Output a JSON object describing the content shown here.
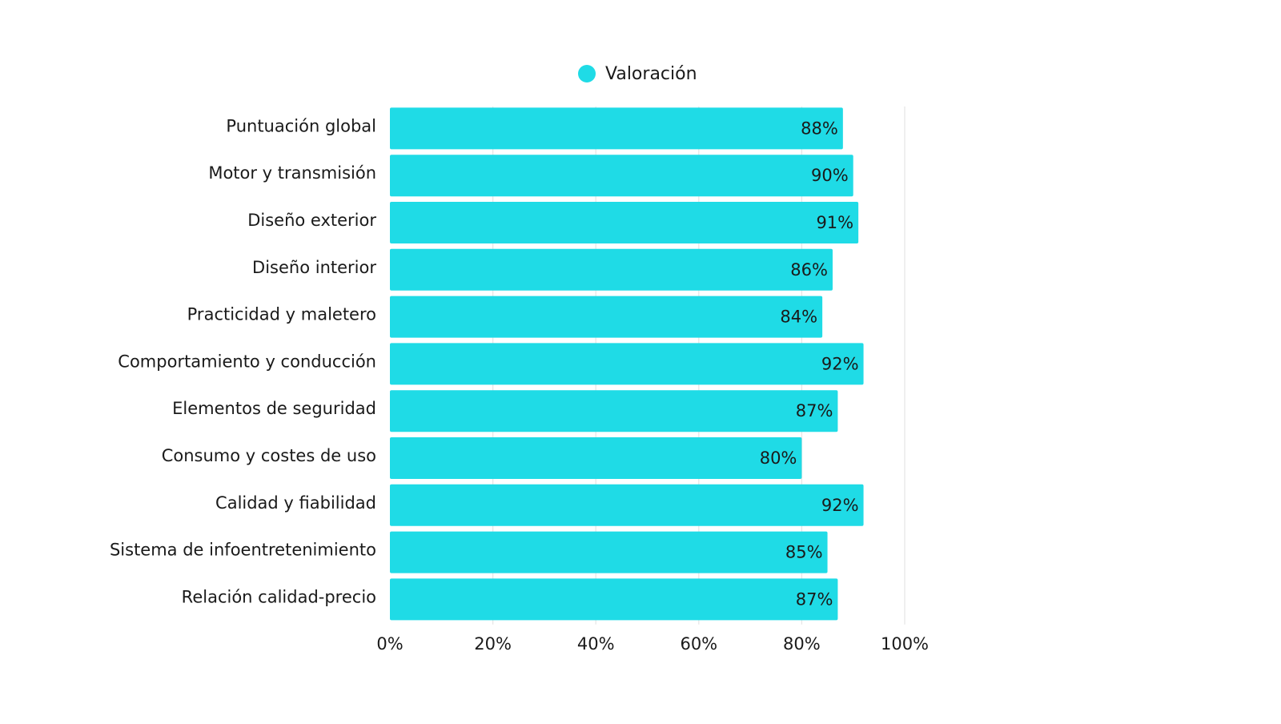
{
  "chart_data": {
    "type": "bar",
    "orientation": "horizontal",
    "title": "",
    "xlabel": "",
    "ylabel": "",
    "categories": [
      "Puntuación global",
      "Motor y transmisión",
      "Diseño exterior",
      "Diseño interior",
      "Practicidad y maletero",
      "Comportamiento y conducción",
      "Elementos de seguridad",
      "Consumo y costes de uso",
      "Calidad y fiabilidad",
      "Sistema de infoentretenimiento",
      "Relación calidad-precio"
    ],
    "series": [
      {
        "name": "Valoración",
        "values": [
          88,
          90,
          91,
          86,
          84,
          92,
          87,
          80,
          92,
          85,
          87
        ],
        "data_labels": [
          "88%",
          "90%",
          "91%",
          "86%",
          "84%",
          "92%",
          "87%",
          "80%",
          "92%",
          "85%",
          "87%"
        ]
      }
    ],
    "xlim": [
      0,
      100
    ],
    "x_ticks": [
      0,
      20,
      40,
      60,
      80,
      100
    ],
    "x_tick_labels": [
      "0%",
      "20%",
      "40%",
      "60%",
      "80%",
      "100%"
    ],
    "grid": true,
    "legend": "top",
    "colors": {
      "bar": "#1fdbe6",
      "grid": "#e6e6e6",
      "text": "#1a1a1a"
    }
  }
}
